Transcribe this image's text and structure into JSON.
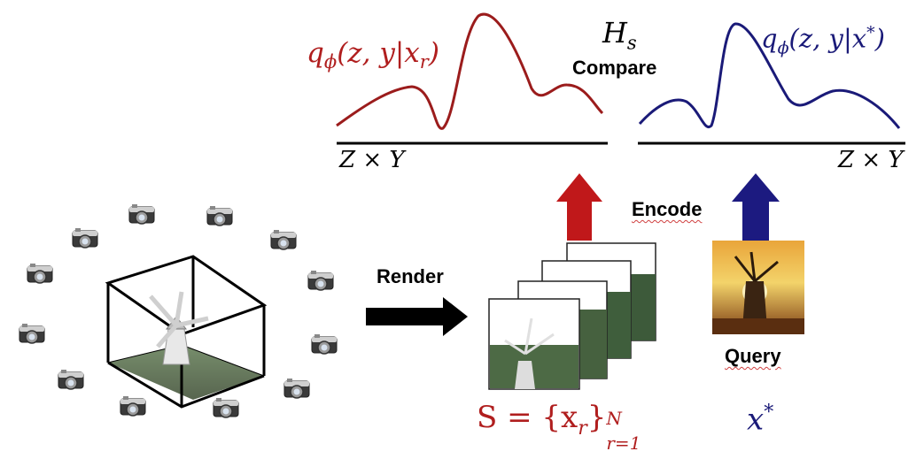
{
  "colors": {
    "render_curve": "#9b1c1c",
    "query_curve": "#1a1a78",
    "red_math": "#b01e1e",
    "blue_math": "#1a1a78",
    "red_arrow": "#c0181a",
    "blue_arrow": "#1c1a80"
  },
  "labels": {
    "hs": "H",
    "hs_sub": "s",
    "compare": "Compare",
    "encode": "Encode",
    "render": "Render",
    "query": "Query",
    "q_render": "q",
    "q_render_sub": "ϕ",
    "q_render_args": "(z, y|x",
    "q_render_args_sub": "r",
    "q_render_close": ")",
    "q_query": "q",
    "q_query_sub": "ϕ",
    "q_query_args": "(z, y|x",
    "q_query_args_sup": "*",
    "q_query_close": ")",
    "axis_left": "Z × Y",
    "axis_right": "Z × Y",
    "set_s": "S = {x",
    "set_s_sub": "r",
    "set_s_close": "}",
    "set_s_sup": "N",
    "set_s_range": "r=1",
    "x_star": "x",
    "x_star_sup": "*"
  },
  "icons": {
    "cameras": "camera-icon",
    "windmill_model": "windmill-3d-icon",
    "rendered_views": "rendered-image-icon",
    "query_photo": "query-photo-icon"
  }
}
